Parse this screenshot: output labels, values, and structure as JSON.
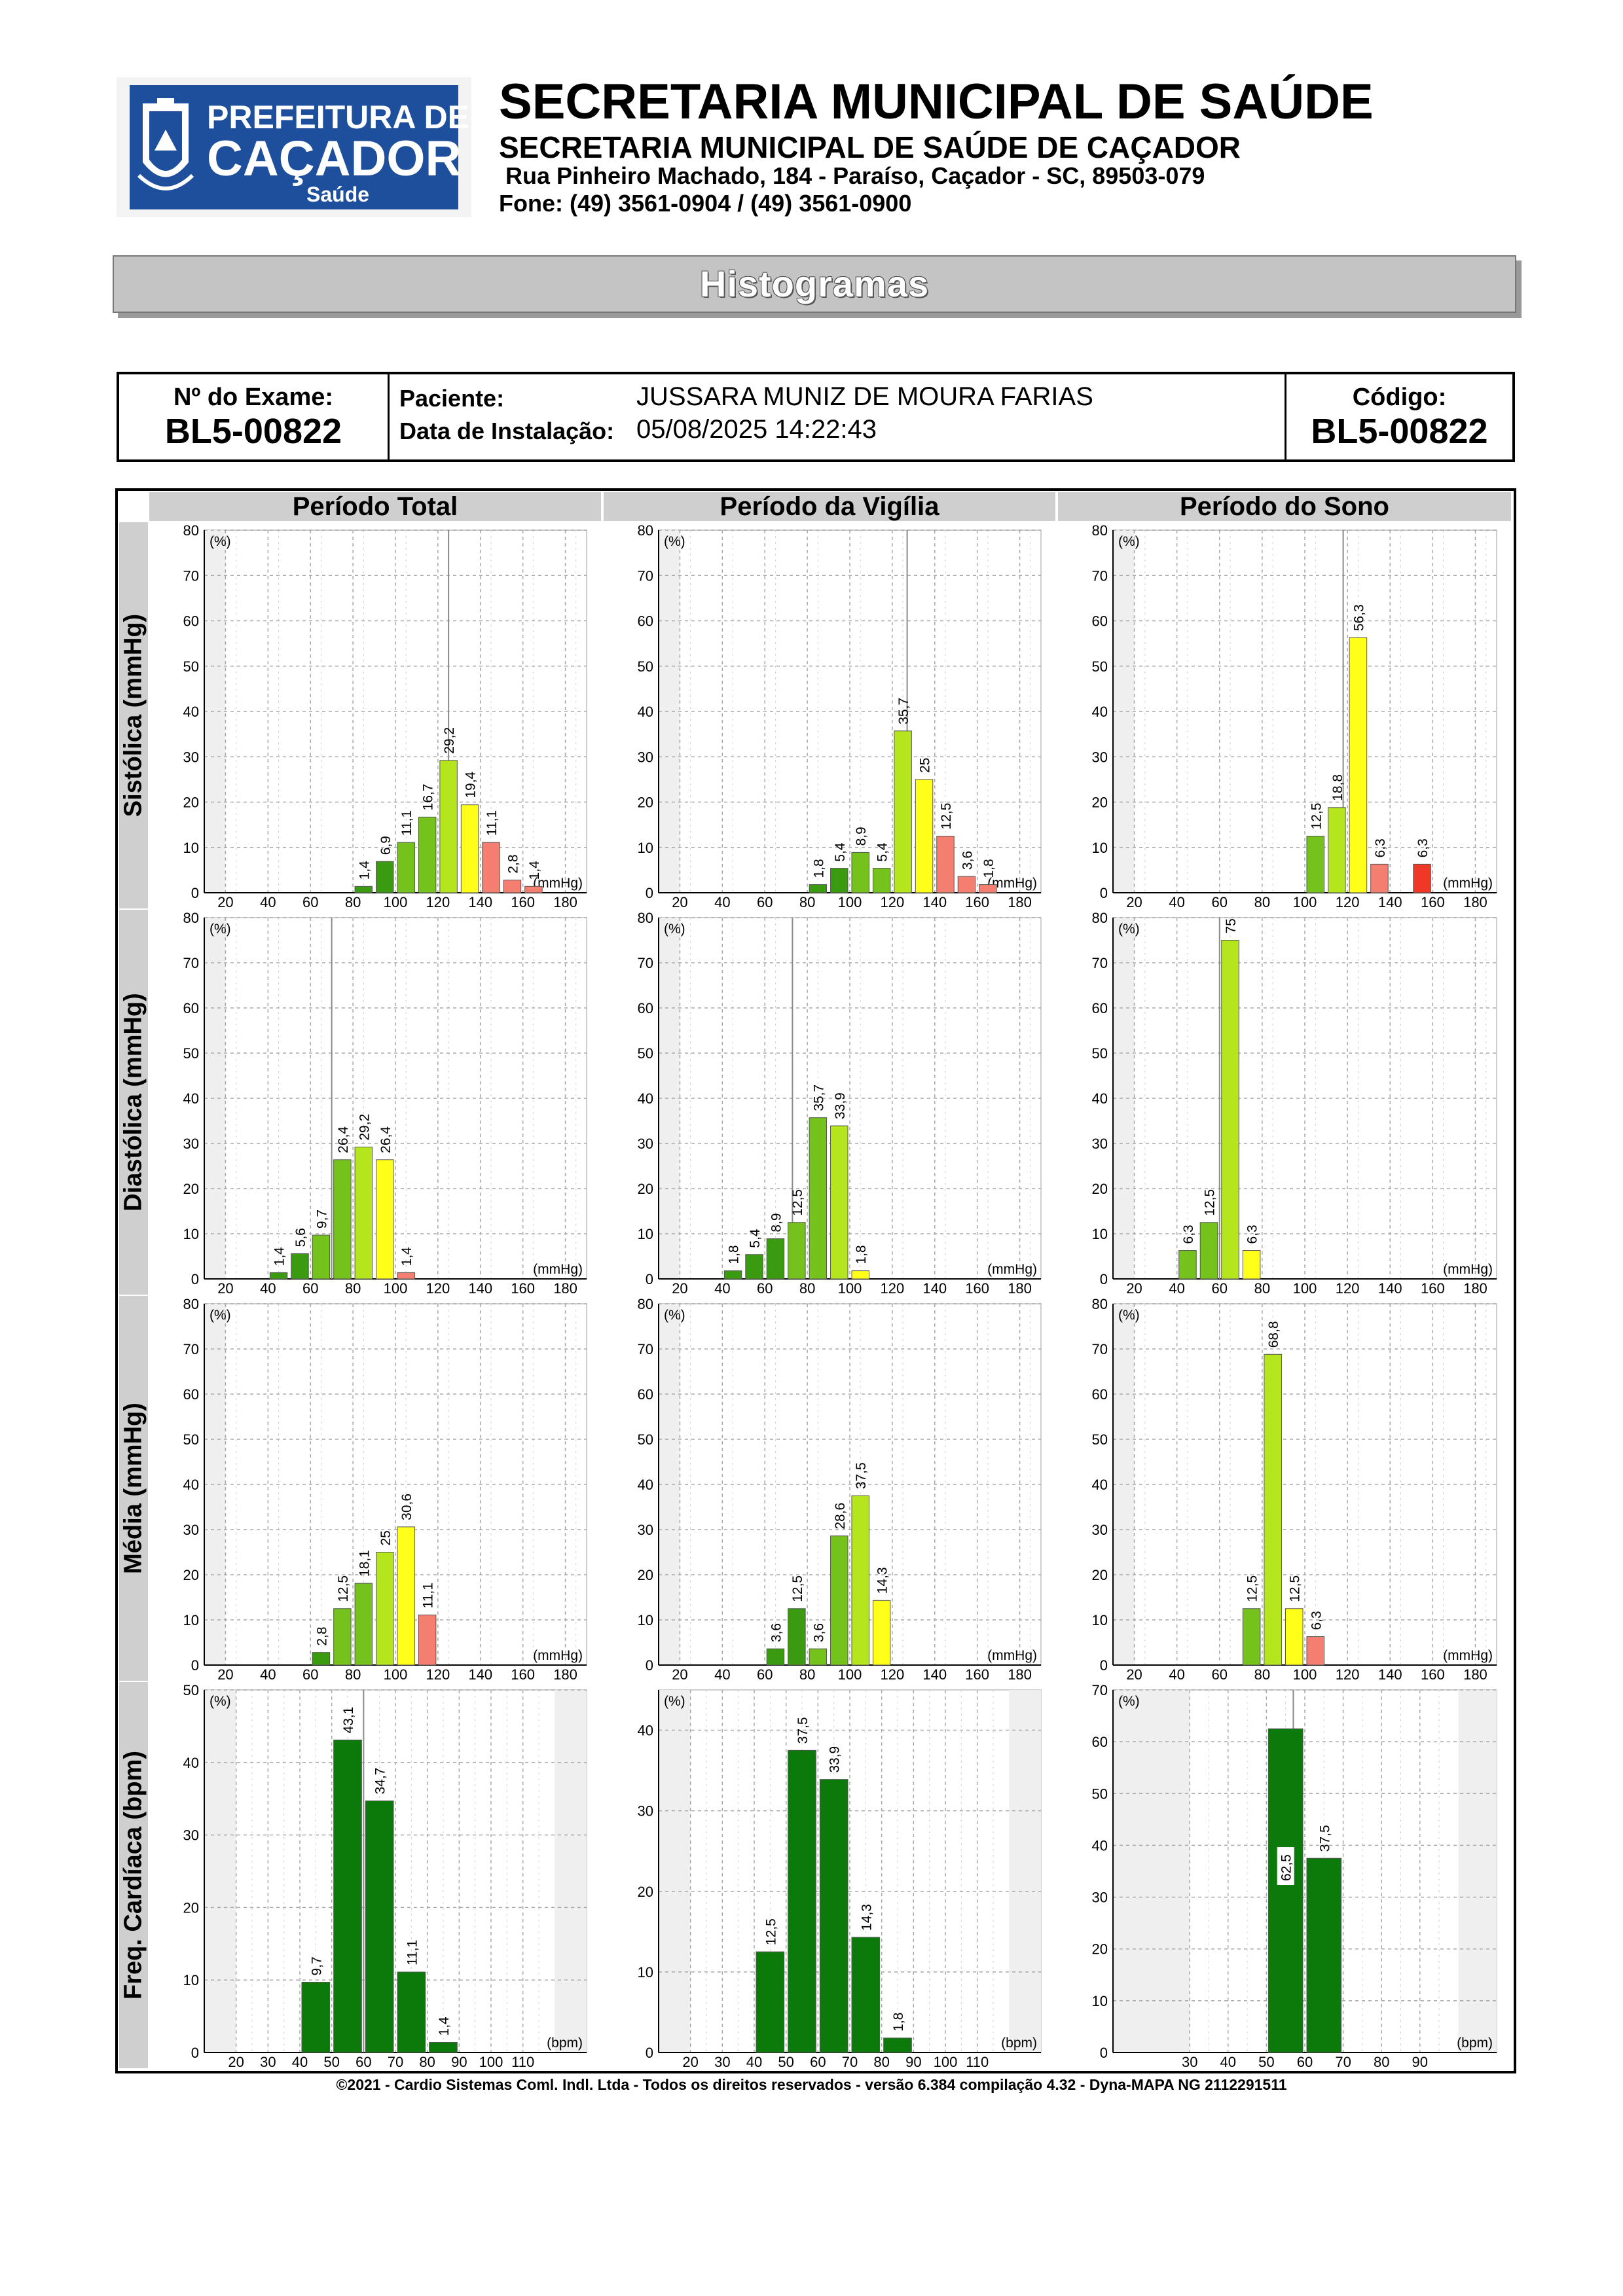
{
  "header": {
    "logo_line1": "PREFEITURA DE",
    "logo_line2": "CAÇADOR",
    "logo_line3": "Saúde",
    "title": "SECRETARIA MUNICIPAL DE SAÚDE",
    "subtitle": "SECRETARIA MUNICIPAL DE SAÚDE DE CAÇADOR",
    "address": "Rua Pinheiro Machado, 184 - Paraíso, Caçador - SC, 89503-079",
    "phone": "Fone: (49) 3561-0904  / (49) 3561-0900"
  },
  "banner": "Histogramas",
  "exam": {
    "exam_label": "Nº do Exame:",
    "exam_number": "BL5-00822",
    "patient_label": "Paciente:",
    "patient_name": "JUSSARA MUNIZ DE MOURA FARIAS",
    "install_label": "Data de Instalação:",
    "install_date": "05/08/2025 14:22:43",
    "code_label": "Código:",
    "code_value": "BL5-00822"
  },
  "columns": [
    "Período Total",
    "Período da Vigília",
    "Período do Sono"
  ],
  "rows": [
    "Sistólica (mmHg)",
    "Diastólica (mmHg)",
    "Média (mmHg)",
    "Freq. Cardíaca (bpm)"
  ],
  "footer": "©2021 - Cardio Sistemas Coml. Indl. Ltda - Todos os direitos reservados - versão 6.384 compilação 4.32 - Dyna-MAPA NG 2112291511",
  "colors": {
    "green_dark": "#3a9a10",
    "green_mid": "#74c21b",
    "green_light": "#b5e61d",
    "yellow": "#ffff1a",
    "red_light": "#f47f70",
    "red": "#f03828",
    "hr_green": "#0b7a0b"
  },
  "chart_data": [
    {
      "type": "bar",
      "row": "Sistólica (mmHg)",
      "column": "Período Total",
      "unit": "(mmHg)",
      "y_unit": "(%)",
      "xlim": [
        10,
        190
      ],
      "ylim": [
        0,
        80
      ],
      "x_ticks": [
        20,
        40,
        60,
        80,
        100,
        120,
        140,
        160,
        180
      ],
      "y_ticks": [
        0,
        10,
        20,
        30,
        40,
        50,
        60,
        70,
        80
      ],
      "bin_width": 10,
      "marker": 125,
      "bars": [
        {
          "x": 85,
          "value": 1.4,
          "label": "1,4",
          "color": "green_dark"
        },
        {
          "x": 95,
          "value": 6.9,
          "label": "6,9",
          "color": "green_dark"
        },
        {
          "x": 105,
          "value": 11.1,
          "label": "11,1",
          "color": "green_mid"
        },
        {
          "x": 115,
          "value": 16.7,
          "label": "16,7",
          "color": "green_mid"
        },
        {
          "x": 125,
          "value": 29.2,
          "label": "29,2",
          "color": "green_light"
        },
        {
          "x": 135,
          "value": 19.4,
          "label": "19,4",
          "color": "yellow"
        },
        {
          "x": 145,
          "value": 11.1,
          "label": "11,1",
          "color": "red_light"
        },
        {
          "x": 155,
          "value": 2.8,
          "label": "2,8",
          "color": "red_light"
        },
        {
          "x": 165,
          "value": 1.4,
          "label": "1,4",
          "color": "red_light"
        }
      ]
    },
    {
      "type": "bar",
      "row": "Sistólica (mmHg)",
      "column": "Período da Vigília",
      "unit": "(mmHg)",
      "y_unit": "(%)",
      "xlim": [
        10,
        190
      ],
      "ylim": [
        0,
        80
      ],
      "x_ticks": [
        20,
        40,
        60,
        80,
        100,
        120,
        140,
        160,
        180
      ],
      "y_ticks": [
        0,
        10,
        20,
        30,
        40,
        50,
        60,
        70,
        80
      ],
      "bin_width": 10,
      "marker": 127,
      "bars": [
        {
          "x": 85,
          "value": 1.8,
          "label": "1,8",
          "color": "green_dark"
        },
        {
          "x": 95,
          "value": 5.4,
          "label": "5,4",
          "color": "green_dark"
        },
        {
          "x": 105,
          "value": 8.9,
          "label": "8,9",
          "color": "green_mid"
        },
        {
          "x": 115,
          "value": 5.4,
          "label": "5,4",
          "color": "green_mid"
        },
        {
          "x": 125,
          "value": 35.7,
          "label": "35,7",
          "color": "green_light"
        },
        {
          "x": 135,
          "value": 25,
          "label": "25",
          "color": "yellow"
        },
        {
          "x": 145,
          "value": 12.5,
          "label": "12,5",
          "color": "red_light"
        },
        {
          "x": 155,
          "value": 3.6,
          "label": "3,6",
          "color": "red_light"
        },
        {
          "x": 165,
          "value": 1.8,
          "label": "1,8",
          "color": "red_light"
        }
      ]
    },
    {
      "type": "bar",
      "row": "Sistólica (mmHg)",
      "column": "Período do Sono",
      "unit": "(mmHg)",
      "y_unit": "(%)",
      "xlim": [
        10,
        190
      ],
      "ylim": [
        0,
        80
      ],
      "x_ticks": [
        20,
        40,
        60,
        80,
        100,
        120,
        140,
        160,
        180
      ],
      "y_ticks": [
        0,
        10,
        20,
        30,
        40,
        50,
        60,
        70,
        80
      ],
      "bin_width": 10,
      "marker": 118,
      "bars": [
        {
          "x": 105,
          "value": 12.5,
          "label": "12,5",
          "color": "green_mid"
        },
        {
          "x": 115,
          "value": 18.8,
          "label": "18,8",
          "color": "green_light"
        },
        {
          "x": 125,
          "value": 56.3,
          "label": "56,3",
          "color": "yellow"
        },
        {
          "x": 135,
          "value": 6.3,
          "label": "6,3",
          "color": "red_light"
        },
        {
          "x": 155,
          "value": 6.3,
          "label": "6,3",
          "color": "red"
        }
      ]
    },
    {
      "type": "bar",
      "row": "Diastólica (mmHg)",
      "column": "Período Total",
      "unit": "(mmHg)",
      "y_unit": "(%)",
      "xlim": [
        10,
        190
      ],
      "ylim": [
        0,
        80
      ],
      "x_ticks": [
        20,
        40,
        60,
        80,
        100,
        120,
        140,
        160,
        180
      ],
      "y_ticks": [
        0,
        10,
        20,
        30,
        40,
        50,
        60,
        70,
        80
      ],
      "bin_width": 10,
      "marker": 70,
      "bars": [
        {
          "x": 45,
          "value": 1.4,
          "label": "1,4",
          "color": "green_dark"
        },
        {
          "x": 55,
          "value": 5.6,
          "label": "5,6",
          "color": "green_dark"
        },
        {
          "x": 65,
          "value": 9.7,
          "label": "9,7",
          "color": "green_mid"
        },
        {
          "x": 75,
          "value": 26.4,
          "label": "26,4",
          "color": "green_mid"
        },
        {
          "x": 85,
          "value": 29.2,
          "label": "29,2",
          "color": "green_light"
        },
        {
          "x": 95,
          "value": 26.4,
          "label": "26,4",
          "color": "yellow"
        },
        {
          "x": 105,
          "value": 1.4,
          "label": "1,4",
          "color": "red_light"
        }
      ]
    },
    {
      "type": "bar",
      "row": "Diastólica (mmHg)",
      "column": "Período da Vigília",
      "unit": "(mmHg)",
      "y_unit": "(%)",
      "xlim": [
        10,
        190
      ],
      "ylim": [
        0,
        80
      ],
      "x_ticks": [
        20,
        40,
        60,
        80,
        100,
        120,
        140,
        160,
        180
      ],
      "y_ticks": [
        0,
        10,
        20,
        30,
        40,
        50,
        60,
        70,
        80
      ],
      "bin_width": 10,
      "marker": 73,
      "bars": [
        {
          "x": 45,
          "value": 1.8,
          "label": "1,8",
          "color": "green_dark"
        },
        {
          "x": 55,
          "value": 5.4,
          "label": "5,4",
          "color": "green_dark"
        },
        {
          "x": 65,
          "value": 8.9,
          "label": "8,9",
          "color": "green_dark"
        },
        {
          "x": 75,
          "value": 12.5,
          "label": "12,5",
          "color": "green_mid"
        },
        {
          "x": 85,
          "value": 35.7,
          "label": "35,7",
          "color": "green_mid"
        },
        {
          "x": 95,
          "value": 33.9,
          "label": "33,9",
          "color": "green_light"
        },
        {
          "x": 105,
          "value": 1.8,
          "label": "1,8",
          "color": "yellow"
        }
      ]
    },
    {
      "type": "bar",
      "row": "Diastólica (mmHg)",
      "column": "Período do Sono",
      "unit": "(mmHg)",
      "y_unit": "(%)",
      "xlim": [
        10,
        190
      ],
      "ylim": [
        0,
        80
      ],
      "x_ticks": [
        20,
        40,
        60,
        80,
        100,
        120,
        140,
        160,
        180
      ],
      "y_ticks": [
        0,
        10,
        20,
        30,
        40,
        50,
        60,
        70,
        80
      ],
      "bin_width": 10,
      "marker": 60,
      "bars": [
        {
          "x": 45,
          "value": 6.3,
          "label": "6,3",
          "color": "green_mid"
        },
        {
          "x": 55,
          "value": 12.5,
          "label": "12,5",
          "color": "green_mid"
        },
        {
          "x": 65,
          "value": 75,
          "label": "75",
          "color": "green_light"
        },
        {
          "x": 75,
          "value": 6.3,
          "label": "6,3",
          "color": "yellow"
        }
      ]
    },
    {
      "type": "bar",
      "row": "Média (mmHg)",
      "column": "Período Total",
      "unit": "(mmHg)",
      "y_unit": "(%)",
      "xlim": [
        10,
        190
      ],
      "ylim": [
        0,
        80
      ],
      "x_ticks": [
        20,
        40,
        60,
        80,
        100,
        120,
        140,
        160,
        180
      ],
      "y_ticks": [
        0,
        10,
        20,
        30,
        40,
        50,
        60,
        70,
        80
      ],
      "bin_width": 10,
      "marker": null,
      "bars": [
        {
          "x": 65,
          "value": 2.8,
          "label": "2,8",
          "color": "green_dark"
        },
        {
          "x": 75,
          "value": 12.5,
          "label": "12,5",
          "color": "green_mid"
        },
        {
          "x": 85,
          "value": 18.1,
          "label": "18,1",
          "color": "green_mid"
        },
        {
          "x": 95,
          "value": 25,
          "label": "25",
          "color": "green_light"
        },
        {
          "x": 105,
          "value": 30.6,
          "label": "30,6",
          "color": "yellow"
        },
        {
          "x": 115,
          "value": 11.1,
          "label": "11,1",
          "color": "red_light"
        }
      ]
    },
    {
      "type": "bar",
      "row": "Média (mmHg)",
      "column": "Período da Vigília",
      "unit": "(mmHg)",
      "y_unit": "(%)",
      "xlim": [
        10,
        190
      ],
      "ylim": [
        0,
        80
      ],
      "x_ticks": [
        20,
        40,
        60,
        80,
        100,
        120,
        140,
        160,
        180
      ],
      "y_ticks": [
        0,
        10,
        20,
        30,
        40,
        50,
        60,
        70,
        80
      ],
      "bin_width": 10,
      "marker": null,
      "bars": [
        {
          "x": 65,
          "value": 3.6,
          "label": "3,6",
          "color": "green_dark"
        },
        {
          "x": 75,
          "value": 12.5,
          "label": "12,5",
          "color": "green_dark"
        },
        {
          "x": 85,
          "value": 3.6,
          "label": "3,6",
          "color": "green_mid"
        },
        {
          "x": 95,
          "value": 28.6,
          "label": "28,6",
          "color": "green_mid"
        },
        {
          "x": 105,
          "value": 37.5,
          "label": "37,5",
          "color": "green_light"
        },
        {
          "x": 115,
          "value": 14.3,
          "label": "14,3",
          "color": "yellow"
        }
      ]
    },
    {
      "type": "bar",
      "row": "Média (mmHg)",
      "column": "Período do Sono",
      "unit": "(mmHg)",
      "y_unit": "(%)",
      "xlim": [
        10,
        190
      ],
      "ylim": [
        0,
        80
      ],
      "x_ticks": [
        20,
        40,
        60,
        80,
        100,
        120,
        140,
        160,
        180
      ],
      "y_ticks": [
        0,
        10,
        20,
        30,
        40,
        50,
        60,
        70,
        80
      ],
      "bin_width": 10,
      "marker": null,
      "bars": [
        {
          "x": 75,
          "value": 12.5,
          "label": "12,5",
          "color": "green_mid"
        },
        {
          "x": 85,
          "value": 68.8,
          "label": "68,8",
          "color": "green_light"
        },
        {
          "x": 95,
          "value": 12.5,
          "label": "12,5",
          "color": "yellow"
        },
        {
          "x": 105,
          "value": 6.3,
          "label": "6,3",
          "color": "red_light"
        }
      ]
    },
    {
      "type": "bar",
      "row": "Freq. Cardíaca (bpm)",
      "column": "Período Total",
      "unit": "(bpm)",
      "y_unit": "(%)",
      "xlim": [
        10,
        130
      ],
      "ylim": [
        0,
        50
      ],
      "x_ticks": [
        20,
        30,
        40,
        50,
        60,
        70,
        80,
        90,
        100,
        110
      ],
      "y_ticks": [
        0,
        10,
        20,
        30,
        40,
        50
      ],
      "bin_width": 10,
      "marker": 60,
      "bars": [
        {
          "x": 45,
          "value": 9.7,
          "label": "9,7",
          "color": "hr_green"
        },
        {
          "x": 55,
          "value": 43.1,
          "label": "43,1",
          "color": "hr_green"
        },
        {
          "x": 65,
          "value": 34.7,
          "label": "34,7",
          "color": "hr_green"
        },
        {
          "x": 75,
          "value": 11.1,
          "label": "11,1",
          "color": "hr_green"
        },
        {
          "x": 85,
          "value": 1.4,
          "label": "1,4",
          "color": "hr_green"
        }
      ]
    },
    {
      "type": "bar",
      "row": "Freq. Cardíaca (bpm)",
      "column": "Período da Vigília",
      "unit": "(bpm)",
      "y_unit": "(%)",
      "xlim": [
        10,
        130
      ],
      "ylim": [
        0,
        45
      ],
      "x_ticks": [
        20,
        30,
        40,
        50,
        60,
        70,
        80,
        90,
        100,
        110
      ],
      "y_ticks": [
        0,
        10,
        20,
        30,
        40
      ],
      "bin_width": 10,
      "marker": null,
      "bars": [
        {
          "x": 45,
          "value": 12.5,
          "label": "12,5",
          "color": "hr_green"
        },
        {
          "x": 55,
          "value": 37.5,
          "label": "37,5",
          "color": "hr_green"
        },
        {
          "x": 65,
          "value": 33.9,
          "label": "33,9",
          "color": "hr_green"
        },
        {
          "x": 75,
          "value": 14.3,
          "label": "14,3",
          "color": "hr_green"
        },
        {
          "x": 85,
          "value": 1.8,
          "label": "1,8",
          "color": "hr_green"
        }
      ]
    },
    {
      "type": "bar",
      "row": "Freq. Cardíaca (bpm)",
      "column": "Período do Sono",
      "unit": "(bpm)",
      "y_unit": "(%)",
      "xlim": [
        10,
        110
      ],
      "ylim": [
        0,
        70
      ],
      "x_ticks": [
        30,
        40,
        50,
        60,
        70,
        80,
        90
      ],
      "y_ticks": [
        0,
        10,
        20,
        30,
        40,
        50,
        60,
        70
      ],
      "bin_width": 10,
      "marker": 57,
      "bars": [
        {
          "x": 55,
          "value": 62.5,
          "label": "62,5",
          "color": "hr_green",
          "label_inside": true
        },
        {
          "x": 65,
          "value": 37.5,
          "label": "37,5",
          "color": "hr_green"
        }
      ]
    }
  ]
}
